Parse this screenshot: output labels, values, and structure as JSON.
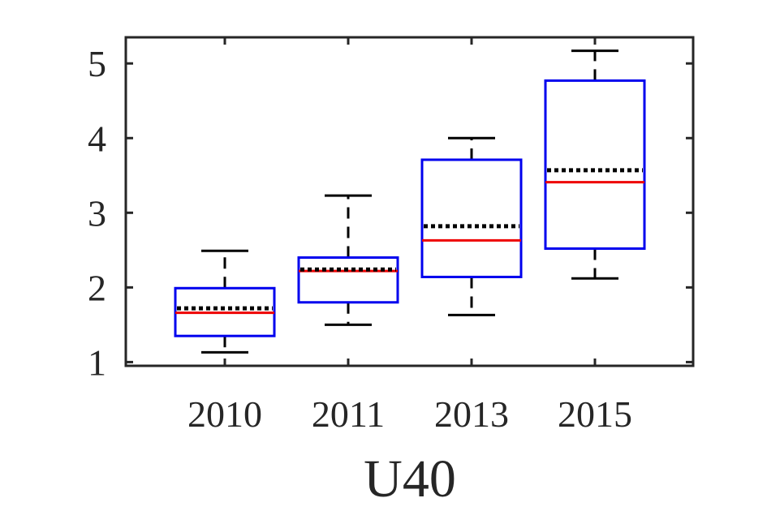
{
  "chart_data": {
    "type": "box",
    "title": "",
    "xlabel": "U40",
    "ylabel": "",
    "categories": [
      "2010",
      "2011",
      "2013",
      "2015"
    ],
    "ylim": [
      0.95,
      5.35
    ],
    "yticks": [
      1,
      2,
      3,
      4,
      5
    ],
    "grid": false,
    "boxes": [
      {
        "category": "2010",
        "whisker_low": 1.13,
        "q1": 1.35,
        "median": 1.66,
        "mean": 1.72,
        "q3": 1.99,
        "whisker_high": 2.49
      },
      {
        "category": "2011",
        "whisker_low": 1.5,
        "q1": 1.8,
        "median": 2.22,
        "mean": 2.24,
        "q3": 2.4,
        "whisker_high": 3.23
      },
      {
        "category": "2013",
        "whisker_low": 1.63,
        "q1": 2.14,
        "median": 2.63,
        "mean": 2.82,
        "q3": 3.71,
        "whisker_high": 4.0
      },
      {
        "category": "2015",
        "whisker_low": 2.12,
        "q1": 2.52,
        "median": 3.41,
        "mean": 3.57,
        "q3": 4.77,
        "whisker_high": 5.17
      }
    ],
    "colors": {
      "box": "#0000ee",
      "median": "#ee0000",
      "mean": "#000000",
      "whisker": "#000000",
      "axis": "#262626"
    }
  }
}
